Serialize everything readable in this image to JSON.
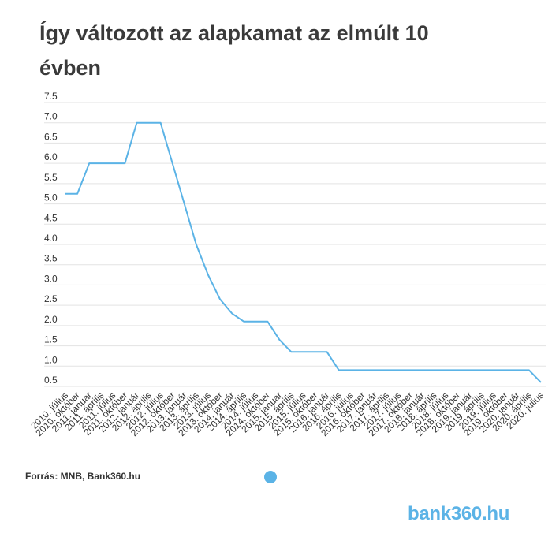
{
  "chart_data": {
    "type": "line",
    "title": "Így változott az alapkamat az elmúlt 10 évben",
    "categories": [
      "2010. július",
      "2010. október",
      "2011. január",
      "2011. április",
      "2011. július",
      "2011. október",
      "2012. január",
      "2012. április",
      "2012. július",
      "2012. október",
      "2013. január",
      "2013. április",
      "2013. július",
      "2013. október",
      "2014. január",
      "2014. április",
      "2014. július",
      "2014. október",
      "2015. január",
      "2015. április",
      "2015. július",
      "2015. október",
      "2016. január",
      "2016. április",
      "2016. július",
      "2016. október",
      "2017. január",
      "2017. április",
      "2017. július",
      "2017. október",
      "2018. január",
      "2018. április",
      "2018. július",
      "2018. október",
      "2019. január",
      "2019. április",
      "2019. július",
      "2019. október",
      "2020. január",
      "2020. április",
      "2020. július"
    ],
    "series": [
      {
        "values": [
          5.25,
          5.25,
          6.0,
          6.0,
          6.0,
          6.0,
          7.0,
          7.0,
          7.0,
          6.0,
          5.0,
          4.0,
          3.25,
          2.65,
          2.3,
          2.1,
          2.1,
          2.1,
          1.65,
          1.35,
          1.35,
          1.35,
          1.35,
          0.9,
          0.9,
          0.9,
          0.9,
          0.9,
          0.9,
          0.9,
          0.9,
          0.9,
          0.9,
          0.9,
          0.9,
          0.9,
          0.9,
          0.9,
          0.9,
          0.9,
          0.6
        ]
      }
    ],
    "y_ticks": [
      "0.5",
      "1.0",
      "1.5",
      "2.0",
      "2.5",
      "3.0",
      "3.5",
      "4.0",
      "4.5",
      "5.0",
      "5.5",
      "6.0",
      "6.5",
      "7.0",
      "7.5"
    ],
    "ylim": [
      0.5,
      7.5
    ],
    "grid": true,
    "line_color": "#5bb3e6"
  },
  "source": "Forrás: MNB, Bank360.hu",
  "logo": {
    "prefix": "bank360",
    "suffix": ".hu",
    "color": "#5bb3e6"
  }
}
